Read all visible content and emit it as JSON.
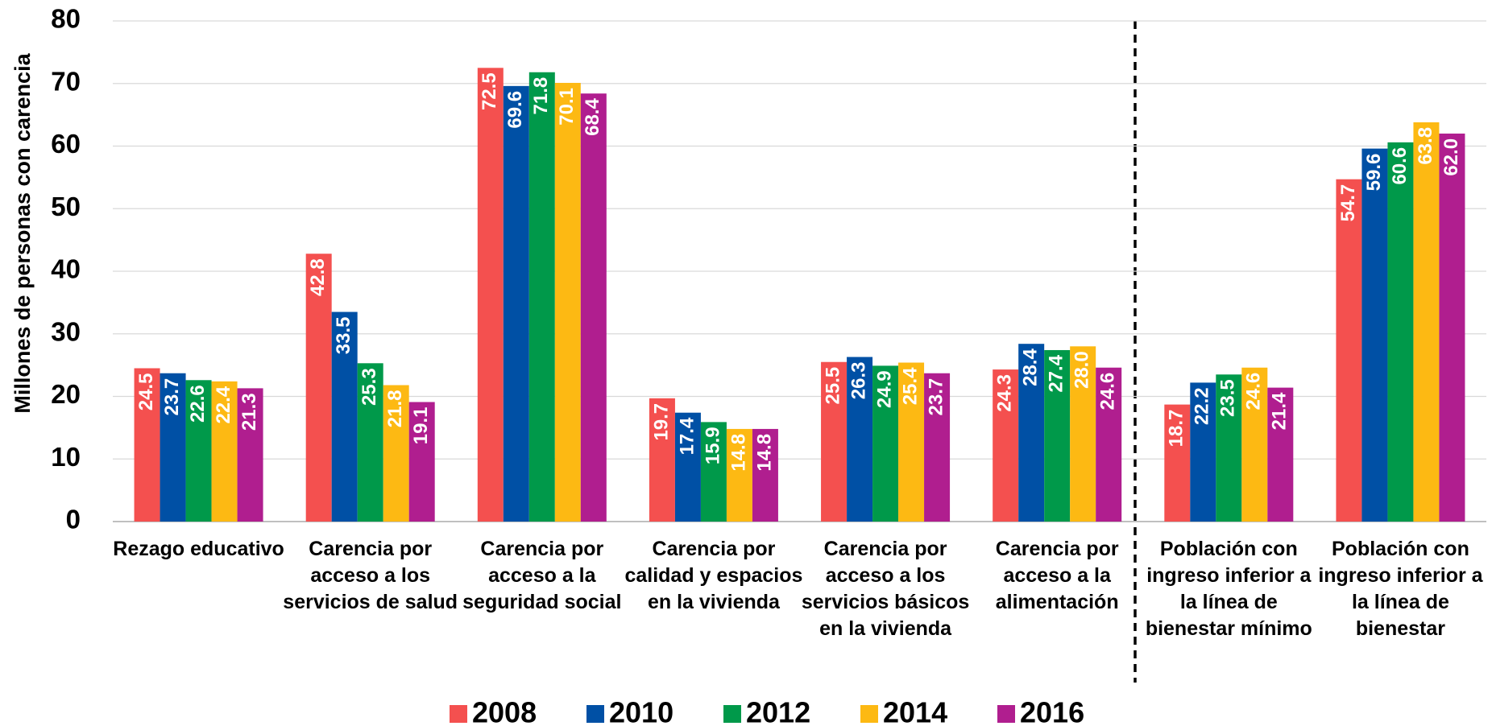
{
  "chart_data": {
    "type": "bar",
    "y_label": "Millones de personas con carencia",
    "categories": [
      "Rezago educativo",
      "Carencia por acceso a los servicios de salud",
      "Carencia por acceso a la seguridad social",
      "Carencia por calidad y espacios en la vivienda",
      "Carencia por acceso a los servicios básicos en la vivienda",
      "Carencia por acceso a la alimentación",
      "Población con ingreso inferior a la línea de bienestar mínimo",
      "Población con ingreso inferior a la línea de bienestar"
    ],
    "series": [
      {
        "name": "2008",
        "color": "#f4504f",
        "values": [
          24.5,
          42.8,
          72.5,
          19.7,
          25.5,
          24.3,
          18.7,
          54.7
        ]
      },
      {
        "name": "2010",
        "color": "#0050a5",
        "values": [
          23.7,
          33.5,
          69.6,
          17.4,
          26.3,
          28.4,
          22.2,
          59.6
        ]
      },
      {
        "name": "2012",
        "color": "#00994a",
        "values": [
          22.6,
          25.3,
          71.8,
          15.9,
          24.9,
          27.4,
          23.5,
          60.6
        ]
      },
      {
        "name": "2014",
        "color": "#fdb913",
        "values": [
          22.4,
          21.8,
          70.1,
          14.8,
          25.4,
          28.0,
          24.6,
          63.8
        ]
      },
      {
        "name": "2016",
        "color": "#b01e8f",
        "values": [
          21.3,
          19.1,
          68.4,
          14.8,
          23.7,
          24.6,
          21.4,
          62.0
        ]
      }
    ],
    "value_labels": [
      [
        "24.5",
        "42.8",
        "72.5",
        "19.7",
        "25.5",
        "24.3",
        "18.7",
        "54.7"
      ],
      [
        "23.7",
        "33.5",
        "69.6",
        "17.4",
        "26.3",
        "28.4",
        "22.2",
        "59.6"
      ],
      [
        "22.6",
        "25.3",
        "71.8",
        "15.9",
        "24.9",
        "27.4",
        "23.5",
        "60.6"
      ],
      [
        "22.4",
        "21.8",
        "70.1",
        "14.8",
        "25.4",
        "28.0",
        "24.6",
        "63.8"
      ],
      [
        "21.3",
        "19.1",
        "68.4",
        "14.8",
        "23.7",
        "24.6",
        "21.4",
        "62.0"
      ]
    ],
    "ylim": [
      0,
      80
    ],
    "yticks": [
      0,
      10,
      20,
      30,
      40,
      50,
      60,
      70,
      80
    ],
    "grid": true
  }
}
